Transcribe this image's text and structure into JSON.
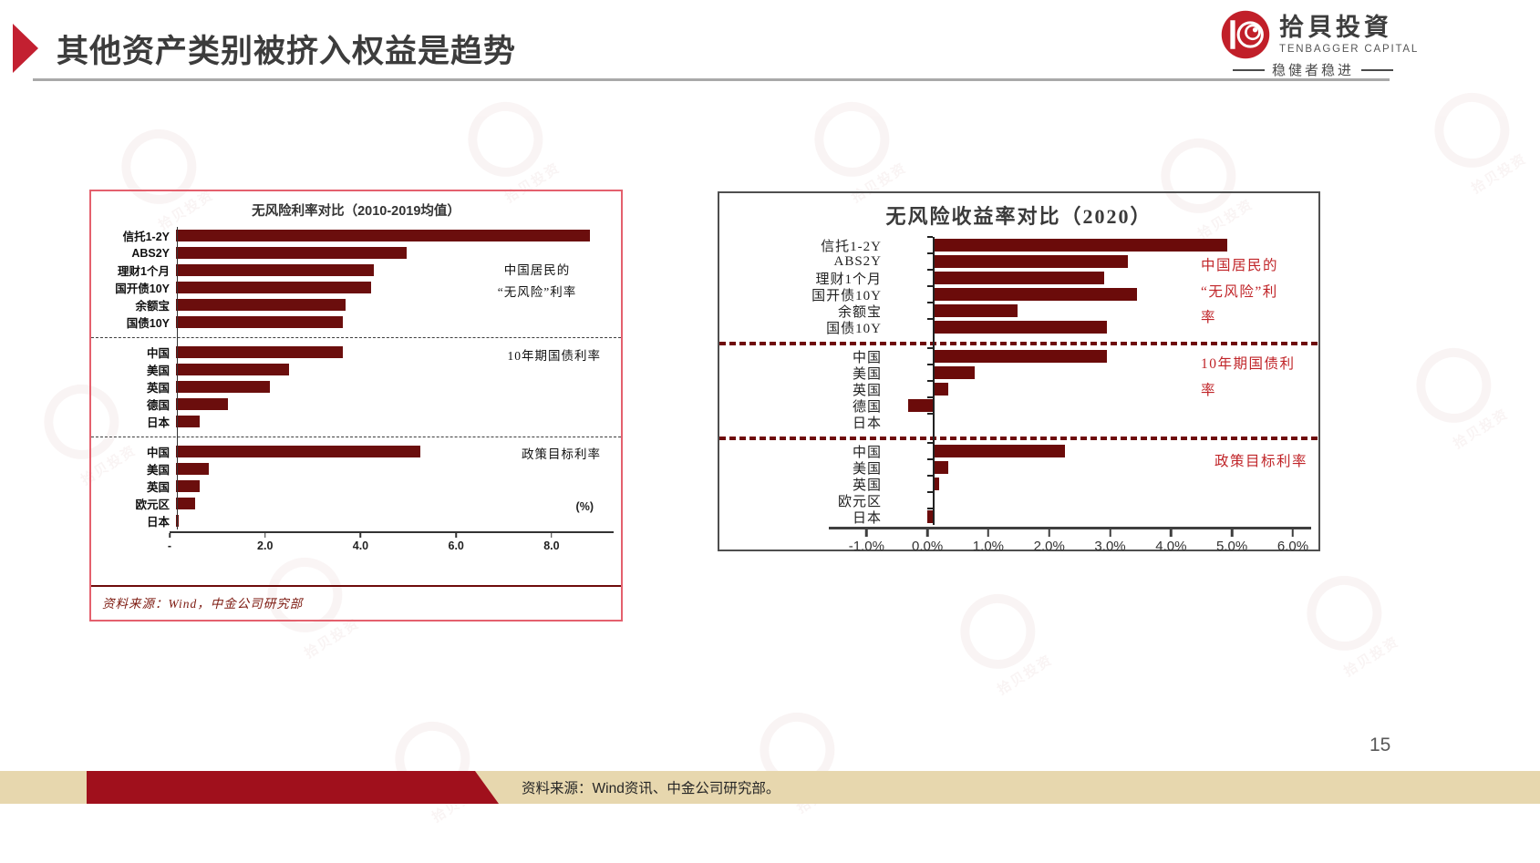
{
  "header": {
    "title": "其他资产类别被挤入权益是趋势"
  },
  "logo": {
    "name_cn": "拾貝投資",
    "name_en": "TENBAGGER CAPITAL",
    "tagline": "稳健者稳进"
  },
  "watermark": {
    "text": "拾贝投资"
  },
  "page_number": "15",
  "footer": {
    "source": "资料来源：Wind资讯、中金公司研究部。"
  },
  "colors": {
    "bar": "#6b0e0d",
    "accent_red": "#c02428",
    "left_box_border": "#e4606d",
    "right_box_border": "#4f4f4f",
    "footer_red": "#a0101c",
    "footer_tan": "#e7d7ae"
  },
  "chart_data": [
    {
      "type": "bar",
      "title": "无风险利率对比（2010-2019均值）",
      "orientation": "horizontal",
      "axis": {
        "min": 0,
        "max": 9.3,
        "unit_label": "(%)",
        "ticks": [
          {
            "label": "-",
            "value": 0
          },
          {
            "label": "2.0",
            "value": 2
          },
          {
            "label": "4.0",
            "value": 4
          },
          {
            "label": "6.0",
            "value": 6
          },
          {
            "label": "8.0",
            "value": 8
          }
        ]
      },
      "groups": [
        {
          "annotation": "中国居民的\n“无风险”利率",
          "rows": [
            {
              "label": "信托1-2Y",
              "value": 8.8
            },
            {
              "label": "ABS2Y",
              "value": 4.9
            },
            {
              "label": "理财1个月",
              "value": 4.2
            },
            {
              "label": "国开债10Y",
              "value": 4.15
            },
            {
              "label": "余额宝",
              "value": 3.6
            },
            {
              "label": "国债10Y",
              "value": 3.55
            }
          ]
        },
        {
          "annotation": "10年期国债利率",
          "rows": [
            {
              "label": "中国",
              "value": 3.55
            },
            {
              "label": "美国",
              "value": 2.4
            },
            {
              "label": "英国",
              "value": 2.0
            },
            {
              "label": "德国",
              "value": 1.1
            },
            {
              "label": "日本",
              "value": 0.5
            }
          ]
        },
        {
          "annotation": "政策目标利率",
          "rows": [
            {
              "label": "中国",
              "value": 5.2
            },
            {
              "label": "美国",
              "value": 0.7
            },
            {
              "label": "英国",
              "value": 0.5
            },
            {
              "label": "欧元区",
              "value": 0.4
            },
            {
              "label": "日本",
              "value": 0.05
            }
          ]
        }
      ],
      "source": "资料来源：Wind，中金公司研究部"
    },
    {
      "type": "bar",
      "title": "无风险收益率对比（2020）",
      "orientation": "horizontal",
      "axis": {
        "min": -0.75,
        "max": 6.3,
        "unit_label": "",
        "ticks": [
          {
            "label": "-1.0%",
            "value": -1
          },
          {
            "label": "0.0%",
            "value": 0
          },
          {
            "label": "1.0%",
            "value": 1
          },
          {
            "label": "2.0%",
            "value": 2
          },
          {
            "label": "3.0%",
            "value": 3
          },
          {
            "label": "4.0%",
            "value": 4
          },
          {
            "label": "5.0%",
            "value": 5
          },
          {
            "label": "6.0%",
            "value": 6
          }
        ]
      },
      "groups": [
        {
          "annotation": "中国居民的\n“无风险”利\n率",
          "rows": [
            {
              "label": "信托1-2Y",
              "value": 4.9
            },
            {
              "label": "ABS2Y",
              "value": 3.25
            },
            {
              "label": "理财1个月",
              "value": 2.85
            },
            {
              "label": "国开债10Y",
              "value": 3.4
            },
            {
              "label": "余额宝",
              "value": 1.4
            },
            {
              "label": "国债10Y",
              "value": 2.9
            }
          ]
        },
        {
          "annotation": "10年期国债利\n率",
          "rows": [
            {
              "label": "中国",
              "value": 2.9
            },
            {
              "label": "美国",
              "value": 0.7
            },
            {
              "label": "英国",
              "value": 0.25
            },
            {
              "label": "德国",
              "value": -0.42
            },
            {
              "label": "日本",
              "value": 0.03
            }
          ]
        },
        {
          "annotation": "政策目标利率",
          "rows": [
            {
              "label": "中国",
              "value": 2.2
            },
            {
              "label": "美国",
              "value": 0.25
            },
            {
              "label": "英国",
              "value": 0.1
            },
            {
              "label": "欧元区",
              "value": 0
            },
            {
              "label": "日本",
              "value": -0.1
            }
          ]
        }
      ],
      "source": ""
    }
  ]
}
